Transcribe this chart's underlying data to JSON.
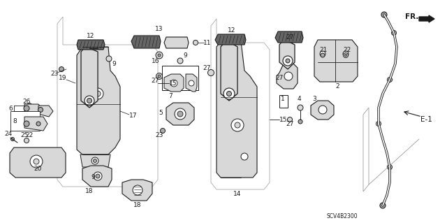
{
  "background_color": "#ffffff",
  "diagram_code": "SCV4B2300",
  "line_color": "#1a1a1a",
  "gray_light": "#d8d8d8",
  "gray_mid": "#aaaaaa",
  "gray_dark": "#666666",
  "fs": 6.5,
  "fs_label": 7.5,
  "lw_main": 1.0,
  "lw_thin": 0.6
}
